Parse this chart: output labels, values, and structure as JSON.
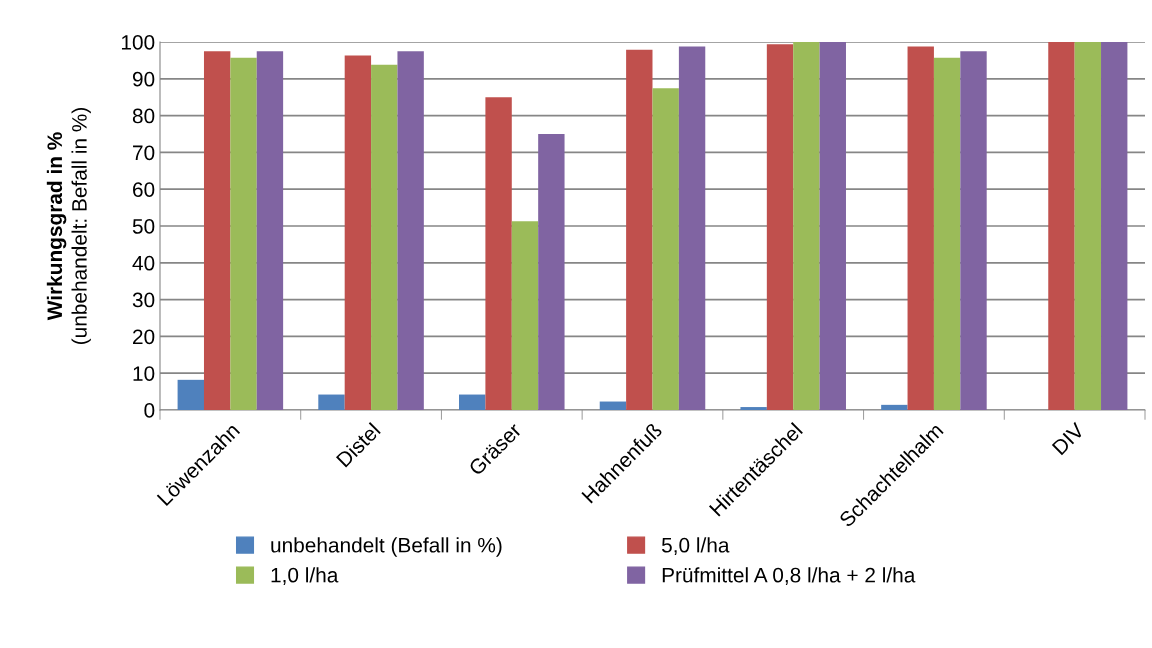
{
  "chart_data": {
    "type": "bar",
    "ylabel": "Wirkungsgrad in %\n(unbehandelt: Befall in %)",
    "categories": [
      "Löwenzahn",
      "Distel",
      "Gräser",
      "Hahnenfuß",
      "Hirtentäschel",
      "Schachtelhalm",
      "DIV"
    ],
    "series": [
      {
        "name": "unbehandelt (Befall in %)",
        "color": "#4f81bd",
        "values": [
          8.2,
          4.2,
          4.2,
          2.3,
          0.8,
          1.4,
          null
        ]
      },
      {
        "name": "5,0 l/ha",
        "color": "#c0504d",
        "values": [
          97.5,
          96.3,
          85,
          97.9,
          99.4,
          98.8,
          100
        ]
      },
      {
        "name": "1,0 l/ha",
        "color": "#9bbb59",
        "values": [
          95.7,
          93.8,
          51.3,
          87.4,
          100,
          95.7,
          100
        ]
      },
      {
        "name": "Prüfmittel A 0,8 l/ha + 2 l/ha",
        "color": "#8064a2",
        "values": [
          97.5,
          97.5,
          75,
          98.8,
          100,
          97.5,
          100
        ]
      }
    ],
    "ylim": [
      0,
      100
    ],
    "yticks": [
      0,
      10,
      20,
      30,
      40,
      50,
      60,
      70,
      80,
      90,
      100
    ],
    "grid": "y",
    "legend": "bottom"
  }
}
